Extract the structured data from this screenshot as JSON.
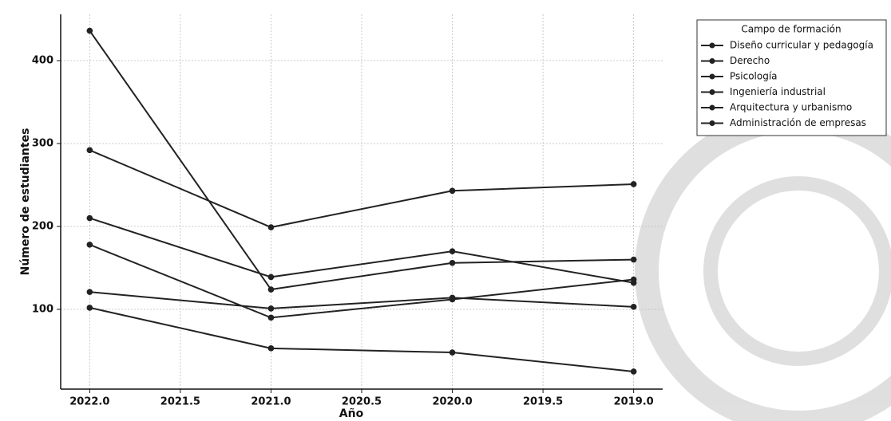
{
  "chart_data": {
    "type": "line",
    "x_label": "Año",
    "y_label": "Número de estudiantes",
    "legend_title": "Campo de formación",
    "legend": "upper right",
    "grid": true,
    "x": [
      2022,
      2021,
      2020,
      2019
    ],
    "xlim": [
      2022.16,
      2018.84
    ],
    "xticks": [
      {
        "value": 2022,
        "label": "2022.0"
      },
      2021.5,
      {
        "value": 2021,
        "label": "2021.0"
      },
      2020.5,
      {
        "value": 2020,
        "label": "2020.0"
      },
      2019.5,
      {
        "value": 2019,
        "label": "2019.0"
      }
    ],
    "ylim": [
      3.8,
      455.8
    ],
    "yticks": [
      100,
      200,
      300,
      400
    ],
    "series": [
      {
        "name": "Diseño curricular y pedagogía",
        "color": "#222222",
        "values": [
          292,
          199,
          243,
          251
        ]
      },
      {
        "name": "Derecho",
        "color": "#222222",
        "values": [
          436,
          124,
          156,
          160
        ]
      },
      {
        "name": "Psicología",
        "color": "#222222",
        "values": [
          210,
          139,
          170,
          132
        ]
      },
      {
        "name": "Ingeniería industrial",
        "color": "#222222",
        "values": [
          178,
          90,
          112,
          136
        ]
      },
      {
        "name": "Arquitectura y urbanismo",
        "color": "#222222",
        "values": [
          121,
          101,
          114,
          103
        ]
      },
      {
        "name": "Administración de empresas",
        "color": "#222222",
        "values": [
          102,
          53,
          48,
          25
        ]
      }
    ]
  }
}
